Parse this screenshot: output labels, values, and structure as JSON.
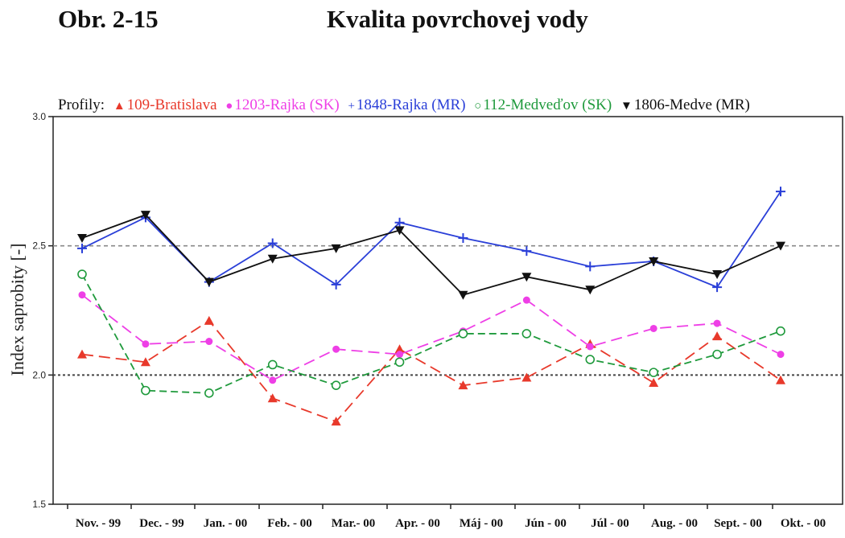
{
  "header": {
    "figure_number": "Obr. 2-15",
    "title": "Kvalita povrchovej vody"
  },
  "legend": {
    "prefix": "Profily:",
    "entries": [
      {
        "symbol": "▲",
        "label": "109-Bratislava",
        "color": "#e8392b"
      },
      {
        "symbol": "●",
        "label": "1203-Rajka (SK)",
        "color": "#ee3fe6"
      },
      {
        "symbol": "+",
        "label": "1848-Rajka (MR)",
        "color": "#2a3fd8"
      },
      {
        "symbol": "○",
        "label": "112-Medveďov (SK)",
        "color": "#1f9a3c"
      },
      {
        "symbol": "▼",
        "label": "1806-Medve (MR)",
        "color": "#111111"
      }
    ]
  },
  "chart_data": {
    "type": "line",
    "ylabel": "Index saprobity [-]",
    "xlabel": "",
    "ylim": [
      1.5,
      3.0
    ],
    "yticks": [
      "1.5",
      "2.0",
      "2.5",
      "3.0"
    ],
    "reference_lines": [
      2.0,
      2.5
    ],
    "categories": [
      "Nov. - 99",
      "Dec. - 99",
      "Jan. - 00",
      "Feb. - 00",
      "Mar.- 00",
      "Apr. - 00",
      "Máj - 00",
      "Jún - 00",
      "Júl - 00",
      "Aug. - 00",
      "Sept. - 00",
      "Okt. - 00"
    ],
    "series": [
      {
        "name": "109-Bratislava",
        "color": "#e8392b",
        "dash": "dashed",
        "marker": "triangle-up",
        "values": [
          2.08,
          2.05,
          2.21,
          1.91,
          1.82,
          2.1,
          1.96,
          1.99,
          2.12,
          1.97,
          2.15,
          1.98
        ]
      },
      {
        "name": "1203-Rajka (SK)",
        "color": "#ee3fe6",
        "dash": "dashed",
        "marker": "circle-filled",
        "values": [
          2.31,
          2.12,
          2.13,
          1.98,
          2.1,
          2.08,
          2.17,
          2.29,
          2.11,
          2.18,
          2.2,
          2.08
        ]
      },
      {
        "name": "1848-Rajka (MR)",
        "color": "#2a3fd8",
        "dash": "solid",
        "marker": "plus",
        "values": [
          2.49,
          2.61,
          2.36,
          2.51,
          2.35,
          2.59,
          2.53,
          2.48,
          2.42,
          2.44,
          2.34,
          2.71
        ]
      },
      {
        "name": "112-Medveďov (SK)",
        "color": "#1f9a3c",
        "dash": "dashed",
        "marker": "circle-open",
        "values": [
          2.39,
          1.94,
          1.93,
          2.04,
          1.96,
          2.05,
          2.16,
          2.16,
          2.06,
          2.01,
          2.08,
          2.17
        ]
      },
      {
        "name": "1806-Medve (MR)",
        "color": "#111111",
        "dash": "solid",
        "marker": "triangle-down",
        "values": [
          2.53,
          2.62,
          2.36,
          2.45,
          2.49,
          2.56,
          2.31,
          2.38,
          2.33,
          2.44,
          2.39,
          2.5
        ]
      }
    ]
  }
}
